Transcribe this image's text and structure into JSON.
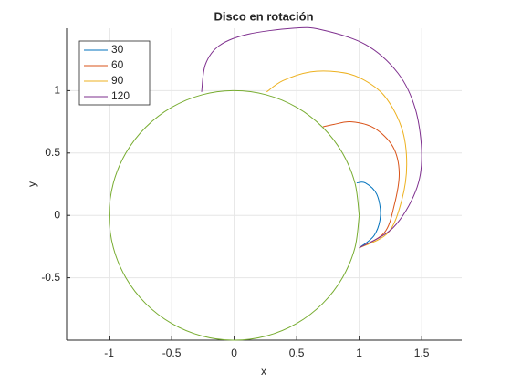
{
  "chart_data": {
    "type": "line",
    "title": "Disco en rotación",
    "x_label": "x",
    "y_label": "y",
    "xlim": [
      -1.34,
      1.82
    ],
    "ylim": [
      -1,
      1.5
    ],
    "xticks": [
      -1,
      -0.5,
      0,
      0.5,
      1,
      1.5
    ],
    "yticks": [
      -0.5,
      0,
      0.5,
      1
    ],
    "grid": true,
    "legend": "northwest",
    "series": [
      {
        "name": "30",
        "color": "#0072BD",
        "x": [
          1.0,
          1.12,
          1.17,
          1.14,
          1.05,
          0.98
        ],
        "values": [
          -0.26,
          -0.16,
          0,
          0.17,
          0.26,
          0.26
        ]
      },
      {
        "name": "60",
        "color": "#D95319",
        "x": [
          1.0,
          1.2,
          1.28,
          1.32,
          1.27,
          1.12,
          0.94,
          0.8,
          0.71
        ],
        "values": [
          -0.26,
          -0.14,
          0.08,
          0.34,
          0.55,
          0.7,
          0.75,
          0.73,
          0.71
        ]
      },
      {
        "name": "90",
        "color": "#EDB120",
        "x": [
          1.0,
          1.23,
          1.34,
          1.38,
          1.34,
          1.2,
          1.01,
          0.83,
          0.61,
          0.39,
          0.26
        ],
        "values": [
          -0.26,
          -0.14,
          0.12,
          0.41,
          0.7,
          0.96,
          1.1,
          1.15,
          1.15,
          1.08,
          0.99
        ]
      },
      {
        "name": "120",
        "color": "#7E2F8E",
        "x": [
          1.0,
          1.27,
          1.45,
          1.5,
          1.45,
          1.31,
          1.05,
          0.69,
          0.47,
          0.1,
          -0.12,
          -0.23,
          -0.26
        ],
        "values": [
          -0.26,
          -0.1,
          0.19,
          0.48,
          0.85,
          1.14,
          1.37,
          1.49,
          1.5,
          1.45,
          1.36,
          1.21,
          0.99
        ]
      }
    ],
    "circle": {
      "color": "#77AC30",
      "x": [
        1,
        0.966,
        0.866,
        0.707,
        0.5,
        0.259,
        0,
        -0.259,
        -0.5,
        -0.707,
        -0.866,
        -0.966,
        -1,
        -0.966,
        -0.866,
        -0.707,
        -0.5,
        -0.259,
        0,
        0.259,
        0.5,
        0.707,
        0.866,
        0.966,
        1
      ],
      "values": [
        0,
        0.259,
        0.5,
        0.707,
        0.866,
        0.966,
        1,
        0.966,
        0.866,
        0.707,
        0.5,
        0.259,
        0,
        -0.259,
        -0.5,
        -0.707,
        -0.866,
        -0.966,
        -1,
        -0.966,
        -0.866,
        -0.707,
        -0.5,
        -0.259,
        0
      ]
    }
  }
}
